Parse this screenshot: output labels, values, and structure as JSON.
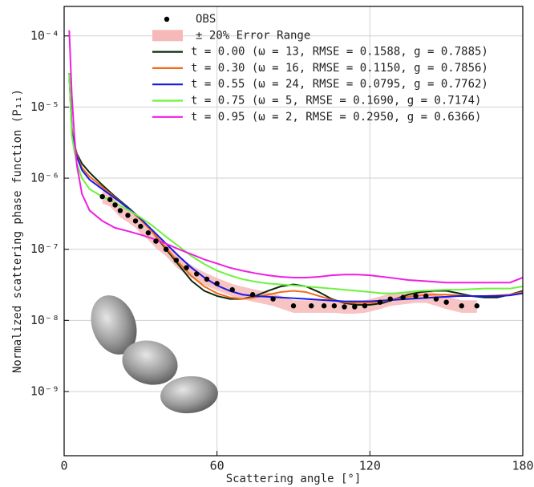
{
  "chart_data": {
    "type": "line",
    "x_label": "Scattering angle [°]",
    "y_label": "Normalized scattering phase function (P₁₁)",
    "xlim": [
      0,
      180
    ],
    "xticks": [
      0,
      60,
      120,
      180
    ],
    "ylim": [
      1.25e-10,
      0.00026
    ],
    "log_y": true,
    "yticks": [
      {
        "value": 1e-09,
        "label": "10⁻⁹"
      },
      {
        "value": 1e-08,
        "label": "10⁻⁸"
      },
      {
        "value": 1e-07,
        "label": "10⁻⁷"
      },
      {
        "value": 1e-06,
        "label": "10⁻⁶"
      },
      {
        "value": 1e-05,
        "label": "10⁻⁵"
      },
      {
        "value": 0.0001,
        "label": "10⁻⁴"
      }
    ],
    "grid": true,
    "legend": "upper right",
    "obs": {
      "name": "OBS",
      "color": "#000000",
      "x": [
        15,
        18,
        20,
        22,
        25,
        28,
        30,
        33,
        36,
        40,
        44,
        48,
        52,
        56,
        60,
        66,
        74,
        82,
        90,
        97,
        102,
        106,
        110,
        114,
        118,
        124,
        128,
        133,
        138,
        142,
        146,
        150,
        156,
        162
      ],
      "values": [
        5.5e-07,
        5e-07,
        4.2e-07,
        3.5e-07,
        3e-07,
        2.5e-07,
        2.1e-07,
        1.7e-07,
        1.3e-07,
        1e-07,
        7e-08,
        5.5e-08,
        4.5e-08,
        3.8e-08,
        3.3e-08,
        2.7e-08,
        2.3e-08,
        2e-08,
        1.6e-08,
        1.6e-08,
        1.6e-08,
        1.6e-08,
        1.55e-08,
        1.55e-08,
        1.6e-08,
        1.8e-08,
        2e-08,
        2.1e-08,
        2.2e-08,
        2.2e-08,
        2e-08,
        1.8e-08,
        1.6e-08,
        1.6e-08
      ]
    },
    "error_band": {
      "name": "± 20% Error Range",
      "color": "#f6b9b9",
      "x": [
        15,
        18,
        20,
        22,
        25,
        28,
        30,
        33,
        36,
        40,
        44,
        48,
        52,
        56,
        60,
        66,
        74,
        82,
        90,
        97,
        102,
        106,
        110,
        114,
        118,
        124,
        128,
        133,
        138,
        142,
        146,
        150,
        156,
        162
      ],
      "lower": [
        4.4e-07,
        4e-07,
        3.36e-07,
        2.8e-07,
        2.4e-07,
        2e-07,
        1.68e-07,
        1.36e-07,
        1.04e-07,
        8e-08,
        5.6e-08,
        4.4e-08,
        3.6e-08,
        3.04e-08,
        2.64e-08,
        2.16e-08,
        1.84e-08,
        1.6e-08,
        1.28e-08,
        1.28e-08,
        1.28e-08,
        1.28e-08,
        1.24e-08,
        1.24e-08,
        1.28e-08,
        1.44e-08,
        1.6e-08,
        1.68e-08,
        1.76e-08,
        1.76e-08,
        1.6e-08,
        1.44e-08,
        1.28e-08,
        1.28e-08
      ],
      "upper": [
        6.6e-07,
        6e-07,
        5.04e-07,
        4.2e-07,
        3.6e-07,
        3e-07,
        2.52e-07,
        2.04e-07,
        1.56e-07,
        1.2e-07,
        8.4e-08,
        6.6e-08,
        5.4e-08,
        4.56e-08,
        3.96e-08,
        3.24e-08,
        2.76e-08,
        2.4e-08,
        1.92e-08,
        1.92e-08,
        1.92e-08,
        1.92e-08,
        1.86e-08,
        1.86e-08,
        1.92e-08,
        2.16e-08,
        2.4e-08,
        2.52e-08,
        2.64e-08,
        2.64e-08,
        2.4e-08,
        2.16e-08,
        1.92e-08,
        1.92e-08
      ]
    },
    "x": [
      2,
      3,
      4,
      5,
      7,
      10,
      15,
      20,
      25,
      30,
      35,
      40,
      45,
      50,
      55,
      60,
      65,
      70,
      75,
      80,
      85,
      90,
      95,
      100,
      105,
      110,
      115,
      120,
      125,
      130,
      135,
      140,
      145,
      150,
      155,
      160,
      165,
      170,
      175,
      180
    ],
    "series": [
      {
        "name": "t = 0.00 (ω = 13, RMSE = 0.1588, g = 0.7885)",
        "color": "#0d2a0d",
        "values": [
          3e-05,
          5e-06,
          3e-06,
          2.2e-06,
          1.6e-06,
          1.2e-06,
          8e-07,
          5.5e-07,
          3.9e-07,
          2.7e-07,
          1.7e-07,
          1e-07,
          6e-08,
          3.6e-08,
          2.6e-08,
          2.2e-08,
          2e-08,
          2e-08,
          2.2e-08,
          2.6e-08,
          3e-08,
          3.2e-08,
          3e-08,
          2.5e-08,
          2e-08,
          1.75e-08,
          1.65e-08,
          1.65e-08,
          1.75e-08,
          2e-08,
          2.3e-08,
          2.5e-08,
          2.6e-08,
          2.6e-08,
          2.4e-08,
          2.2e-08,
          2.1e-08,
          2.1e-08,
          2.3e-08,
          2.6e-08
        ]
      },
      {
        "name": "t = 0.30 (ω = 16, RMSE = 0.1150, g = 0.7856)",
        "color": "#f26b1d",
        "values": [
          3e-05,
          5e-06,
          3e-06,
          2.1e-06,
          1.4e-06,
          1.05e-06,
          7.5e-07,
          5.3e-07,
          3.8e-07,
          2.6e-07,
          1.7e-07,
          1.05e-07,
          6.5e-08,
          4.2e-08,
          3e-08,
          2.4e-08,
          2.1e-08,
          2e-08,
          2.1e-08,
          2.3e-08,
          2.5e-08,
          2.6e-08,
          2.5e-08,
          2.2e-08,
          1.95e-08,
          1.8e-08,
          1.75e-08,
          1.75e-08,
          1.85e-08,
          2e-08,
          2.15e-08,
          2.25e-08,
          2.3e-08,
          2.3e-08,
          2.25e-08,
          2.2e-08,
          2.2e-08,
          2.25e-08,
          2.3e-08,
          2.5e-08
        ]
      },
      {
        "name": "t = 0.55 (ω = 24, RMSE = 0.0795, g = 0.7762)",
        "color": "#1818e6",
        "values": [
          3e-05,
          4.5e-06,
          2.8e-06,
          2e-06,
          1.3e-06,
          9.5e-07,
          7e-07,
          5.2e-07,
          3.8e-07,
          2.7e-07,
          1.8e-07,
          1.2e-07,
          8e-08,
          5.5e-08,
          4e-08,
          3.1e-08,
          2.6e-08,
          2.3e-08,
          2.2e-08,
          2.15e-08,
          2.1e-08,
          2.05e-08,
          2e-08,
          1.95e-08,
          1.9e-08,
          1.85e-08,
          1.85e-08,
          1.85e-08,
          1.9e-08,
          1.95e-08,
          2e-08,
          2.05e-08,
          2.1e-08,
          2.15e-08,
          2.2e-08,
          2.2e-08,
          2.2e-08,
          2.2e-08,
          2.25e-08,
          2.4e-08
        ]
      },
      {
        "name": "t = 0.75 (ω = 5, RMSE = 0.1690, g = 0.7174)",
        "color": "#6cf23c",
        "values": [
          3e-05,
          4e-06,
          2.4e-06,
          1.6e-06,
          1e-06,
          7e-07,
          5.5e-07,
          4.5e-07,
          3.6e-07,
          2.8e-07,
          2.1e-07,
          1.5e-07,
          1.1e-07,
          8e-08,
          6.2e-08,
          5e-08,
          4.3e-08,
          3.8e-08,
          3.5e-08,
          3.3e-08,
          3.2e-08,
          3.1e-08,
          3e-08,
          2.9e-08,
          2.8e-08,
          2.7e-08,
          2.6e-08,
          2.5e-08,
          2.4e-08,
          2.4e-08,
          2.5e-08,
          2.6e-08,
          2.65e-08,
          2.7e-08,
          2.7e-08,
          2.75e-08,
          2.8e-08,
          2.8e-08,
          2.8e-08,
          3e-08
        ]
      },
      {
        "name": "t = 0.95 (ω = 2, RMSE = 0.2950, g = 0.6366)",
        "color": "#f01ee0",
        "values": [
          0.00012,
          1.5e-05,
          4e-06,
          1.5e-06,
          6e-07,
          3.5e-07,
          2.5e-07,
          2e-07,
          1.8e-07,
          1.6e-07,
          1.4e-07,
          1.2e-07,
          1e-07,
          8.5e-08,
          7.2e-08,
          6.3e-08,
          5.5e-08,
          5e-08,
          4.6e-08,
          4.3e-08,
          4.1e-08,
          4e-08,
          4e-08,
          4.1e-08,
          4.3e-08,
          4.4e-08,
          4.4e-08,
          4.3e-08,
          4.1e-08,
          3.9e-08,
          3.7e-08,
          3.6e-08,
          3.5e-08,
          3.4e-08,
          3.4e-08,
          3.4e-08,
          3.4e-08,
          3.4e-08,
          3.4e-08,
          4e-08
        ]
      }
    ]
  }
}
